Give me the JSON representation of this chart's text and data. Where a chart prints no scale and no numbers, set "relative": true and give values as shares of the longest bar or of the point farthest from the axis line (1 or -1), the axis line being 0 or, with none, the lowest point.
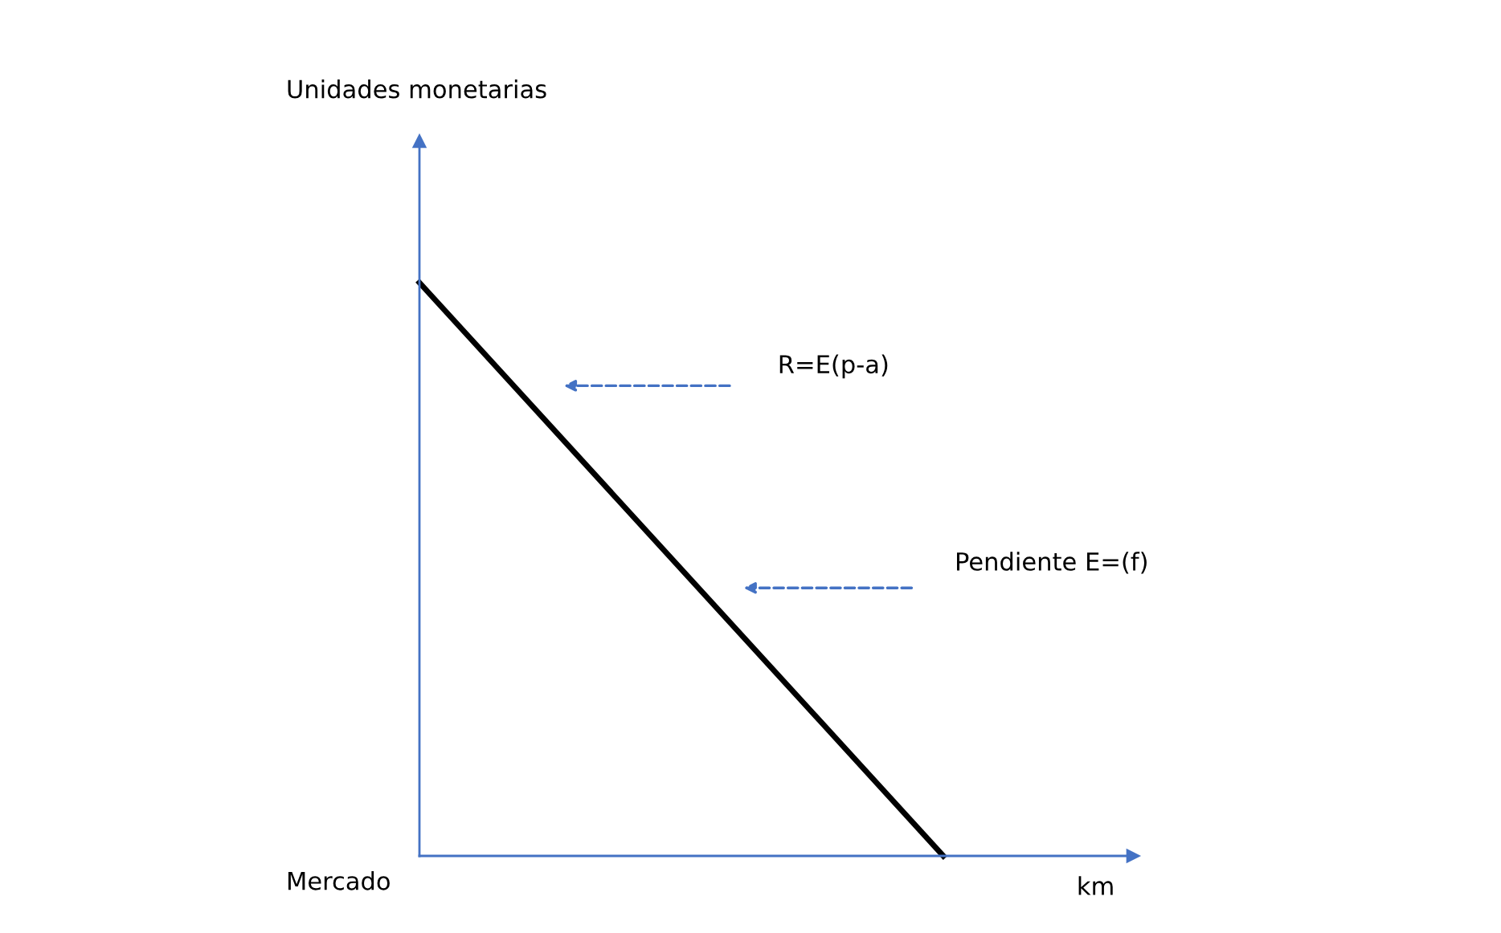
{
  "chart_data": {
    "type": "line",
    "relative": true,
    "xlabel": "km",
    "categories": [
      null,
      null
    ],
    "series": [
      {
        "color": "#000000",
        "values": [
          1,
          0
        ]
      }
    ],
    "annotations": [
      "Unidades monetarias",
      "R=E(p-a)",
      "Pendiente E=(f)",
      "Mercado"
    ],
    "line_style": "solid"
  }
}
